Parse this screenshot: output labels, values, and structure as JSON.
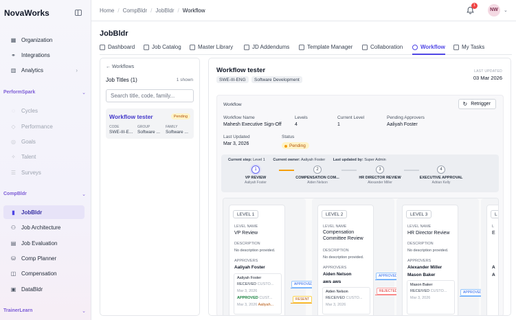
{
  "brand": "NovaWorks",
  "sidebar": {
    "items_top": [
      {
        "label": "Organization",
        "icon": "grid-icon"
      },
      {
        "label": "Integrations",
        "icon": "plug-icon"
      },
      {
        "label": "Analytics",
        "icon": "bar-chart-icon"
      }
    ],
    "sections": [
      {
        "label": "PerformSpark",
        "items": [
          "Cycles",
          "Performance",
          "Goals",
          "Talent",
          "Surveys"
        ]
      },
      {
        "label": "CompBldr",
        "items": [
          "JobBldr",
          "Job Architecture",
          "Job Evaluation",
          "Comp Planner",
          "Compensation",
          "DataBldr"
        ]
      },
      {
        "label": "TrainerLearn",
        "items": []
      }
    ],
    "active": "JobBldr"
  },
  "breadcrumb": [
    "Home",
    "CompBldr",
    "JobBldr",
    "Workflow"
  ],
  "notifications_count": "1",
  "user_initials": "NW",
  "page_title": "JobBldr",
  "tabs": [
    "Dashboard",
    "Job Catalog",
    "Master Library",
    "JD Addendums",
    "Template Manager",
    "Collaboration",
    "Workflow",
    "My Tasks"
  ],
  "active_tab": "Workflow",
  "left": {
    "back": "← Workflows",
    "title": "Job Titles (1)",
    "count": "1 shown",
    "search_placeholder": "Search title, code, family...",
    "card": {
      "title": "Workflow tester",
      "status": "Pending",
      "code_label": "CODE",
      "code": "SWE-III-E...",
      "group_label": "GROUP",
      "group": "Software ...",
      "family_label": "FAMILY",
      "family": "Software ..."
    }
  },
  "main": {
    "title": "Workflow tester",
    "tags": [
      "SWE-III-ENG",
      "Software Development"
    ],
    "last_updated_label": "LAST UPDATED",
    "last_updated": "03 Mar 2026",
    "workflow_label": "Workflow",
    "retrigger": "Retrigger",
    "fields": {
      "workflow_name_label": "Workflow Name",
      "workflow_name": "Mahesh Executive Sign-Off",
      "levels_label": "Levels",
      "levels": "4",
      "current_level_label": "Current Level",
      "current_level": "1",
      "pending_approvers_label": "Pending Approvers",
      "pending_approvers": "Aaliyah Foster",
      "last_updated_label": "Last Updated",
      "last_updated": "Mar 3, 2026",
      "status_label": "Status",
      "status": "Pending"
    },
    "progress": {
      "current_step_label": "Current step:",
      "current_step": "Level 1",
      "current_owner_label": "Current owner:",
      "current_owner": "Aaliyah Foster",
      "last_updated_by_label": "Last updated by:",
      "last_updated_by": "Super Admin",
      "steps": [
        {
          "num": "1",
          "name": "VP REVIEW",
          "owner": "Aaliyah Foster"
        },
        {
          "num": "2",
          "name": "COMPENSATION COM...",
          "owner": "Aiden Nelson"
        },
        {
          "num": "3",
          "name": "HR DIRECTOR REVIEW",
          "owner": "Alexander Miller"
        },
        {
          "num": "4",
          "name": "EXECUTIVE APPROVAL",
          "owner": "Adrian Kelly"
        }
      ]
    },
    "levels": [
      {
        "pill": "LEVEL 1",
        "name_label": "LEVEL NAME",
        "name": "VP Review",
        "desc_label": "DESCRIPTION",
        "desc": "No description provided.",
        "approvers_label": "APPROVERS",
        "approvers": [
          "Aaliyah Foster"
        ],
        "history": {
          "name": "Aaliyah Foster",
          "received": "RECEIVED",
          "received_type": "CUSTO...",
          "received_date": "Mar 3, 2026",
          "approved": "APPROVED",
          "approved_type": "CUST...",
          "approved_date": "Mar 3, 2026",
          "approved_by": "Aaliyah..."
        }
      },
      {
        "pill": "LEVEL 2",
        "name_label": "LEVEL NAME",
        "name": "Compensation Committee Review",
        "desc_label": "DESCRIPTION",
        "desc": "No description provided.",
        "approvers_label": "APPROVERS",
        "approvers": [
          "Aiden Nelson",
          "aws aws"
        ],
        "history": {
          "name": "Aiden Nelson",
          "received": "RECEIVED",
          "received_type": "CUSTO...",
          "received_date": "Mar 3, 2026"
        }
      },
      {
        "pill": "LEVEL 3",
        "name_label": "LEVEL NAME",
        "name": "HR Director Review",
        "desc_label": "DESCRIPTION",
        "desc": "No description provided.",
        "approvers_label": "APPROVERS",
        "approvers": [
          "Alexander Miller",
          "Mason Baker"
        ],
        "history": {
          "name": "Mason Baker",
          "received": "RECEIVED",
          "received_type": "CUSTO...",
          "received_date": "Mar 3, 2026"
        }
      },
      {
        "pill": "L",
        "name_label": "L",
        "name": "E",
        "approvers": [
          "A",
          "A"
        ]
      }
    ],
    "arrows": {
      "approved": "APPROVED",
      "rejected": "REJECTED",
      "resent": "RESENT"
    }
  },
  "colors": {
    "accent": "#4f46e5",
    "pending": "#f59e0b",
    "section": "#7c5cd6"
  }
}
